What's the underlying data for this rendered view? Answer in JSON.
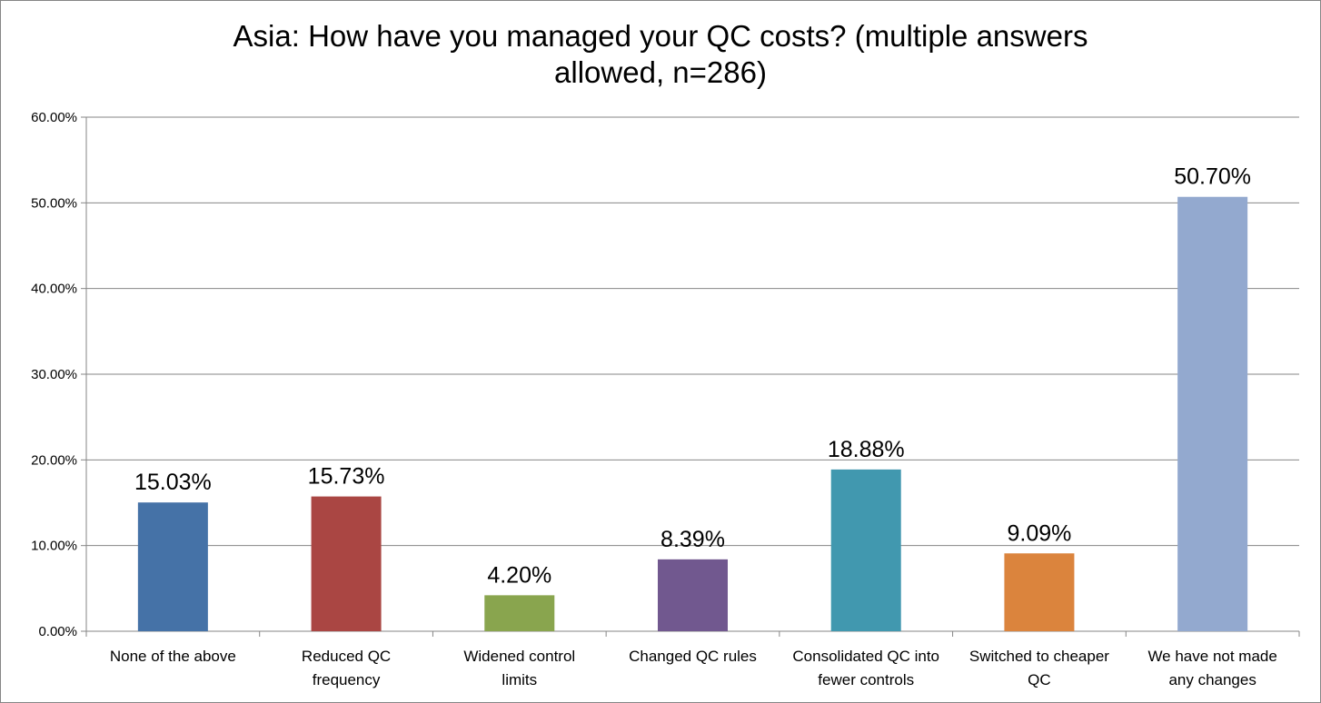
{
  "chart_data": {
    "type": "bar",
    "title_lines": [
      "Asia: How have you managed your QC costs? (multiple answers",
      "allowed, n=286)"
    ],
    "categories": [
      [
        "None of the above"
      ],
      [
        "Reduced QC",
        "frequency"
      ],
      [
        "Widened control",
        "limits"
      ],
      [
        "Changed QC rules"
      ],
      [
        "Consolidated QC  into",
        "fewer controls"
      ],
      [
        "Switched to cheaper",
        "QC"
      ],
      [
        "We have not made",
        "any changes"
      ]
    ],
    "values": [
      15.03,
      15.73,
      4.2,
      8.39,
      18.88,
      9.09,
      50.7
    ],
    "data_labels": [
      "15.03%",
      "15.73%",
      "4.20%",
      "8.39%",
      "18.88%",
      "9.09%",
      "50.70%"
    ],
    "colors": [
      "#4572A7",
      "#AA4643",
      "#89A54E",
      "#71588F",
      "#4198AF",
      "#DB843D",
      "#93A9CF"
    ],
    "yticks": [
      "0.00%",
      "10.00%",
      "20.00%",
      "30.00%",
      "40.00%",
      "50.00%",
      "60.00%"
    ],
    "ylim": [
      0,
      60
    ],
    "grid": true,
    "legend": "none"
  }
}
